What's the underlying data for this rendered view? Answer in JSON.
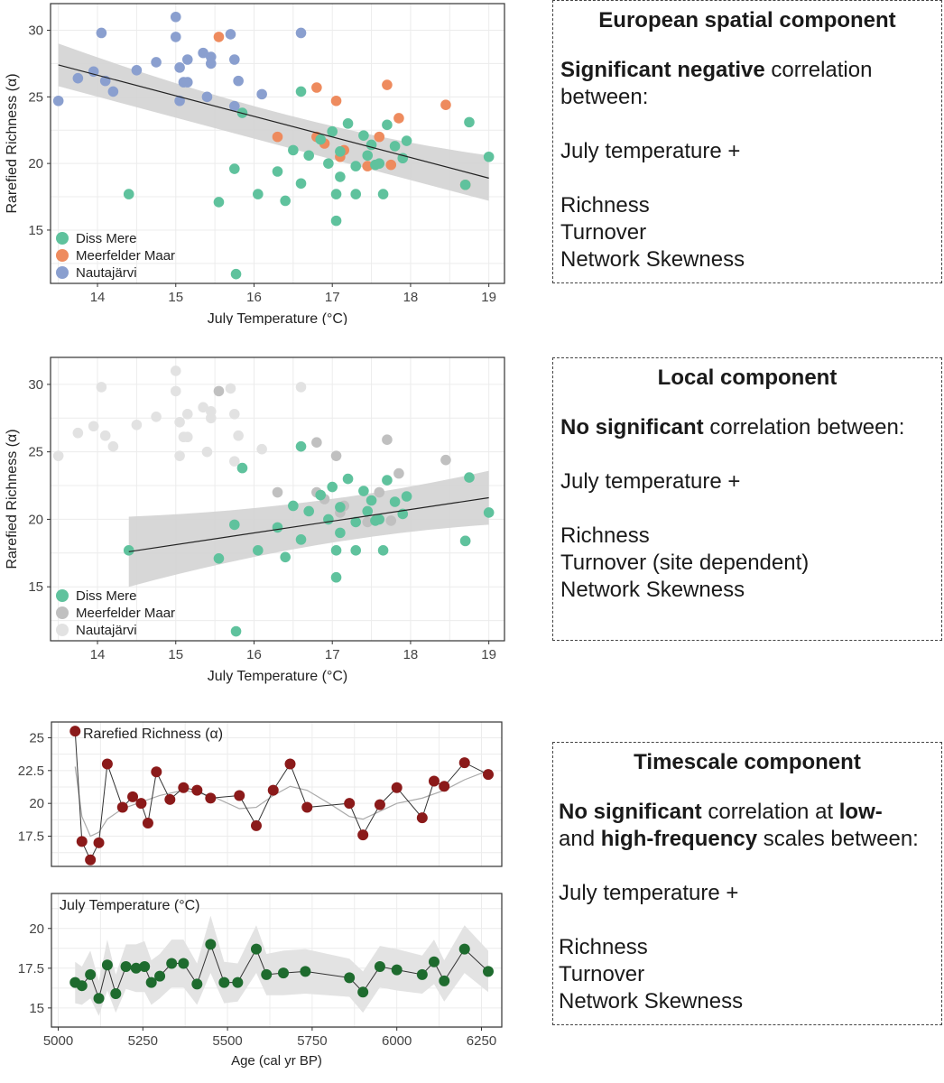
{
  "colors": {
    "diss": "#5fc29d",
    "meer": "#ee8b5e",
    "naut": "#8a9fcf",
    "grey_meer": "#c0c0c0",
    "grey_naut": "#e2e2e2",
    "richness": "#8b1a1a",
    "temperature": "#1e6b2e",
    "band": "#d3d3d3",
    "grid": "#ececec"
  },
  "chart_data": [
    {
      "id": "european",
      "type": "scatter",
      "xlabel": "July Temperature (°C)",
      "ylabel": "Rarefied Richness (α)",
      "xlim": [
        13.4,
        19.2
      ],
      "ylim": [
        11,
        32
      ],
      "xticks": [
        14,
        15,
        16,
        17,
        18,
        19
      ],
      "yticks": [
        15,
        20,
        25,
        30
      ],
      "legend": [
        "Diss Mere",
        "Meerfelder Maar",
        "Nautajärvi"
      ],
      "trend": {
        "x": [
          13.5,
          19
        ],
        "y": [
          27.4,
          18.9
        ],
        "band_at_x0": [
          25.8,
          29.0
        ],
        "band_at_x1": [
          17.2,
          20.6
        ],
        "band_min_x": 16.5,
        "band_min": [
          21.2,
          22.5
        ]
      },
      "series": [
        {
          "name": "Nautajärvi",
          "points": [
            [
              13.5,
              24.7
            ],
            [
              13.75,
              26.4
            ],
            [
              13.95,
              26.9
            ],
            [
              14.05,
              29.8
            ],
            [
              14.1,
              26.2
            ],
            [
              14.2,
              25.4
            ],
            [
              14.5,
              27.0
            ],
            [
              14.75,
              27.6
            ],
            [
              15.0,
              31.0
            ],
            [
              15.0,
              29.5
            ],
            [
              15.05,
              27.2
            ],
            [
              15.1,
              26.1
            ],
            [
              15.15,
              26.1
            ],
            [
              15.15,
              27.8
            ],
            [
              15.35,
              28.3
            ],
            [
              15.45,
              28.0
            ],
            [
              15.45,
              27.5
            ],
            [
              15.7,
              29.7
            ],
            [
              15.75,
              27.8
            ],
            [
              15.8,
              26.2
            ],
            [
              15.75,
              24.3
            ],
            [
              15.4,
              25.0
            ],
            [
              15.05,
              24.7
            ],
            [
              16.1,
              25.2
            ],
            [
              16.6,
              29.8
            ]
          ]
        },
        {
          "name": "Meerfelder Maar",
          "points": [
            [
              15.55,
              29.5
            ],
            [
              16.3,
              22.0
            ],
            [
              16.8,
              25.7
            ],
            [
              16.8,
              22.0
            ],
            [
              16.9,
              21.5
            ],
            [
              17.05,
              24.7
            ],
            [
              17.1,
              20.5
            ],
            [
              17.15,
              21.0
            ],
            [
              17.45,
              19.8
            ],
            [
              17.6,
              22.0
            ],
            [
              17.7,
              25.9
            ],
            [
              17.75,
              19.9
            ],
            [
              17.85,
              23.4
            ],
            [
              18.45,
              24.4
            ],
            [
              18.7,
              18.4
            ]
          ]
        },
        {
          "name": "Diss Mere",
          "points": [
            [
              14.4,
              17.7
            ],
            [
              15.55,
              17.1
            ],
            [
              15.75,
              19.6
            ],
            [
              15.77,
              11.7
            ],
            [
              15.85,
              23.8
            ],
            [
              16.05,
              17.7
            ],
            [
              16.3,
              19.4
            ],
            [
              16.4,
              17.2
            ],
            [
              16.5,
              21.0
            ],
            [
              16.6,
              18.5
            ],
            [
              16.6,
              25.4
            ],
            [
              16.7,
              20.6
            ],
            [
              16.85,
              21.8
            ],
            [
              16.95,
              20.0
            ],
            [
              17.0,
              22.4
            ],
            [
              17.05,
              15.7
            ],
            [
              17.05,
              17.7
            ],
            [
              17.1,
              19.0
            ],
            [
              17.1,
              20.9
            ],
            [
              17.2,
              23.0
            ],
            [
              17.3,
              17.7
            ],
            [
              17.3,
              19.8
            ],
            [
              17.4,
              22.1
            ],
            [
              17.45,
              20.6
            ],
            [
              17.5,
              21.4
            ],
            [
              17.55,
              19.9
            ],
            [
              17.6,
              20.0
            ],
            [
              17.65,
              17.7
            ],
            [
              17.7,
              22.9
            ],
            [
              17.8,
              21.3
            ],
            [
              17.9,
              20.4
            ],
            [
              17.95,
              21.7
            ],
            [
              18.7,
              18.4
            ],
            [
              18.75,
              23.1
            ],
            [
              19.0,
              20.5
            ]
          ]
        }
      ]
    },
    {
      "id": "local",
      "type": "scatter",
      "xlabel": "July Temperature (°C)",
      "ylabel": "Rarefied Richness (α)",
      "xlim": [
        13.4,
        19.2
      ],
      "ylim": [
        11,
        32
      ],
      "xticks": [
        14,
        15,
        16,
        17,
        18,
        19
      ],
      "yticks": [
        15,
        20,
        25,
        30
      ],
      "legend": [
        "Diss Mere",
        "Meerfelder Maar",
        "Nautajärvi"
      ],
      "trend": {
        "x": [
          14.4,
          19
        ],
        "y": [
          17.6,
          21.6
        ],
        "band_at_x0": [
          15.0,
          20.2
        ],
        "band_at_x1": [
          19.6,
          23.6
        ],
        "band_min_x": 16.8,
        "band_min": [
          18.9,
          20.6
        ]
      },
      "series": [
        {
          "name": "Nautajärvi",
          "points": [
            [
              13.5,
              24.7
            ],
            [
              13.75,
              26.4
            ],
            [
              13.95,
              26.9
            ],
            [
              14.05,
              29.8
            ],
            [
              14.1,
              26.2
            ],
            [
              14.2,
              25.4
            ],
            [
              14.5,
              27.0
            ],
            [
              14.75,
              27.6
            ],
            [
              15.0,
              31.0
            ],
            [
              15.0,
              29.5
            ],
            [
              15.05,
              27.2
            ],
            [
              15.1,
              26.1
            ],
            [
              15.15,
              26.1
            ],
            [
              15.15,
              27.8
            ],
            [
              15.35,
              28.3
            ],
            [
              15.45,
              28.0
            ],
            [
              15.45,
              27.5
            ],
            [
              15.7,
              29.7
            ],
            [
              15.75,
              27.8
            ],
            [
              15.8,
              26.2
            ],
            [
              15.75,
              24.3
            ],
            [
              15.4,
              25.0
            ],
            [
              15.05,
              24.7
            ],
            [
              16.1,
              25.2
            ],
            [
              16.6,
              29.8
            ]
          ]
        },
        {
          "name": "Meerfelder Maar",
          "points": [
            [
              15.55,
              29.5
            ],
            [
              16.3,
              22.0
            ],
            [
              16.8,
              25.7
            ],
            [
              16.8,
              22.0
            ],
            [
              16.9,
              21.5
            ],
            [
              17.05,
              24.7
            ],
            [
              17.1,
              20.5
            ],
            [
              17.15,
              21.0
            ],
            [
              17.45,
              19.8
            ],
            [
              17.6,
              22.0
            ],
            [
              17.7,
              25.9
            ],
            [
              17.75,
              19.9
            ],
            [
              17.85,
              23.4
            ],
            [
              18.45,
              24.4
            ],
            [
              18.7,
              18.4
            ]
          ]
        },
        {
          "name": "Diss Mere",
          "points": [
            [
              14.4,
              17.7
            ],
            [
              15.55,
              17.1
            ],
            [
              15.75,
              19.6
            ],
            [
              15.77,
              11.7
            ],
            [
              15.85,
              23.8
            ],
            [
              16.05,
              17.7
            ],
            [
              16.3,
              19.4
            ],
            [
              16.4,
              17.2
            ],
            [
              16.5,
              21.0
            ],
            [
              16.6,
              18.5
            ],
            [
              16.6,
              25.4
            ],
            [
              16.7,
              20.6
            ],
            [
              16.85,
              21.8
            ],
            [
              16.95,
              20.0
            ],
            [
              17.0,
              22.4
            ],
            [
              17.05,
              15.7
            ],
            [
              17.05,
              17.7
            ],
            [
              17.1,
              19.0
            ],
            [
              17.1,
              20.9
            ],
            [
              17.2,
              23.0
            ],
            [
              17.3,
              17.7
            ],
            [
              17.3,
              19.8
            ],
            [
              17.4,
              22.1
            ],
            [
              17.45,
              20.6
            ],
            [
              17.5,
              21.4
            ],
            [
              17.55,
              19.9
            ],
            [
              17.6,
              20.0
            ],
            [
              17.65,
              17.7
            ],
            [
              17.7,
              22.9
            ],
            [
              17.8,
              21.3
            ],
            [
              17.9,
              20.4
            ],
            [
              17.95,
              21.7
            ],
            [
              18.7,
              18.4
            ],
            [
              18.75,
              23.1
            ],
            [
              19.0,
              20.5
            ]
          ]
        }
      ]
    },
    {
      "id": "richness_ts",
      "type": "line",
      "title": "Rarefied Richness (α)",
      "xlim": [
        4980,
        6310
      ],
      "ylim": [
        15.2,
        26.2
      ],
      "yticks": [
        17.5,
        20,
        22.5,
        25
      ],
      "ytick_labels": [
        "17.5",
        "20",
        "22.5",
        "25"
      ],
      "xticks": [
        5000,
        5250,
        5500,
        5750,
        6000,
        6250
      ],
      "x": [
        5050,
        5070,
        5095,
        5120,
        5145,
        5190,
        5220,
        5245,
        5265,
        5290,
        5330,
        5370,
        5410,
        5450,
        5535,
        5585,
        5635,
        5685,
        5735,
        5860,
        5900,
        5950,
        6000,
        6075,
        6110,
        6140,
        6200,
        6270
      ],
      "y": [
        25.5,
        17.1,
        15.7,
        17.0,
        23.0,
        19.7,
        20.5,
        20.0,
        18.5,
        22.4,
        20.3,
        21.2,
        21.0,
        20.4,
        20.6,
        18.3,
        21.0,
        23.0,
        19.7,
        20.0,
        17.6,
        19.9,
        21.2,
        18.9,
        21.7,
        21.3,
        23.1,
        22.2
      ],
      "smooth": [
        [
          5050,
          22.8
        ],
        [
          5070,
          19.0
        ],
        [
          5095,
          17.5
        ],
        [
          5120,
          17.8
        ],
        [
          5145,
          18.8
        ],
        [
          5190,
          19.6
        ],
        [
          5245,
          20.1
        ],
        [
          5300,
          20.6
        ],
        [
          5370,
          21.0
        ],
        [
          5450,
          20.6
        ],
        [
          5535,
          19.6
        ],
        [
          5585,
          19.7
        ],
        [
          5635,
          20.6
        ],
        [
          5685,
          21.3
        ],
        [
          5735,
          21.0
        ],
        [
          5800,
          20.0
        ],
        [
          5860,
          19.0
        ],
        [
          5900,
          18.8
        ],
        [
          5950,
          19.4
        ],
        [
          6000,
          20.0
        ],
        [
          6075,
          20.4
        ],
        [
          6140,
          21.0
        ],
        [
          6200,
          21.8
        ],
        [
          6270,
          22.5
        ]
      ]
    },
    {
      "id": "temperature_ts",
      "type": "line",
      "title": "July Temperature (°C)",
      "xlabel": "Age (cal yr BP)",
      "xlim": [
        4980,
        6310
      ],
      "ylim": [
        13.8,
        22.2
      ],
      "yticks": [
        15,
        17.5,
        20
      ],
      "ytick_labels": [
        "15",
        "17.5",
        "20"
      ],
      "xticks": [
        5000,
        5250,
        5500,
        5750,
        6000,
        6250
      ],
      "xtick_labels": [
        "5000",
        "5250",
        "5500",
        "5750",
        "6000",
        "6250"
      ],
      "x": [
        5050,
        5070,
        5095,
        5120,
        5145,
        5170,
        5200,
        5230,
        5255,
        5275,
        5300,
        5335,
        5370,
        5410,
        5450,
        5490,
        5530,
        5585,
        5615,
        5665,
        5730,
        5860,
        5900,
        5950,
        6000,
        6075,
        6110,
        6140,
        6200,
        6270
      ],
      "y": [
        16.6,
        16.4,
        17.1,
        15.6,
        17.7,
        15.9,
        17.6,
        17.5,
        17.6,
        16.6,
        17.0,
        17.8,
        17.8,
        16.5,
        19.0,
        16.6,
        16.6,
        18.7,
        17.1,
        17.2,
        17.3,
        16.9,
        16.0,
        17.6,
        17.4,
        17.1,
        17.9,
        16.7,
        18.7,
        17.3
      ],
      "band_halfwidth": [
        1.3,
        1.2,
        1.5,
        1.1,
        1.6,
        1.2,
        1.4,
        1.5,
        1.6,
        1.4,
        1.4,
        1.5,
        1.5,
        1.3,
        1.8,
        1.3,
        1.2,
        1.5,
        1.3,
        1.4,
        1.4,
        1.2,
        1.3,
        1.3,
        1.3,
        1.2,
        1.4,
        1.3,
        1.5,
        1.3
      ]
    }
  ],
  "panels": {
    "european": {
      "title": "European spatial component",
      "sig_bold": "Significant negative",
      "sig_rest": " correlation",
      "between": "between:",
      "var": "July temperature +",
      "items": [
        "Richness",
        "Turnover",
        "Network Skewness"
      ]
    },
    "local": {
      "title": "Local component",
      "sig_bold": "No significant",
      "sig_rest": " correlation between:",
      "var": "July temperature +",
      "items": [
        "Richness",
        "Turnover (site dependent)",
        "Network Skewness"
      ]
    },
    "timescale": {
      "title": "Timescale component",
      "sig_bold": "No significant",
      "sig_mid": " correlation at ",
      "low_bold": "low-",
      "and_text": "and ",
      "high_bold": "high-frequency",
      "scales_rest": " scales between:",
      "var": "July temperature +",
      "items": [
        "Richness",
        "Turnover",
        "Network Skewness"
      ]
    }
  }
}
